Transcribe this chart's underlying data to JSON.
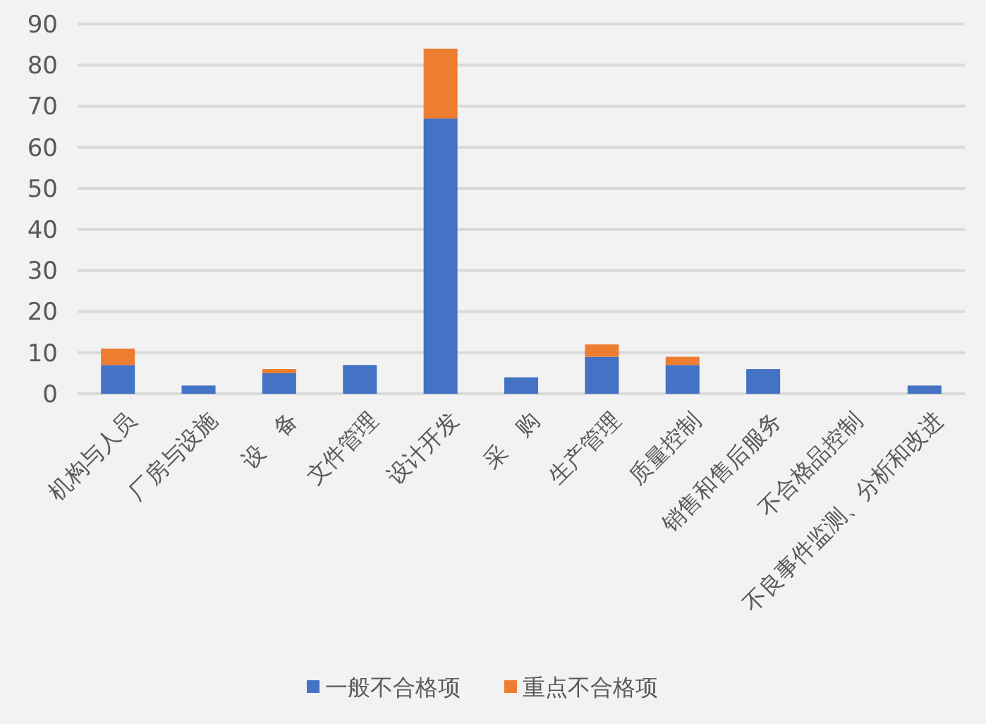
{
  "chart_data": {
    "type": "bar",
    "stacked": true,
    "categories": [
      "机构与人员",
      "厂房与设施",
      "设　备",
      "文件管理",
      "设计开发",
      "采　购",
      "生产管理",
      "质量控制",
      "销售和售后服务",
      "不合格品控制",
      "不良事件监测、分析和改进"
    ],
    "series": [
      {
        "name": "一般不合格项",
        "color": "#4472c4",
        "values": [
          7,
          2,
          5,
          7,
          67,
          4,
          9,
          7,
          6,
          0,
          2
        ]
      },
      {
        "name": "重点不合格项",
        "color": "#ed7d31",
        "values": [
          4,
          0,
          1,
          0,
          17,
          0,
          3,
          2,
          0,
          0,
          0
        ]
      }
    ],
    "ylim": [
      0,
      90
    ],
    "yticks": [
      0,
      10,
      20,
      30,
      40,
      50,
      60,
      70,
      80,
      90
    ],
    "grid": "y",
    "legend": "bottom"
  }
}
